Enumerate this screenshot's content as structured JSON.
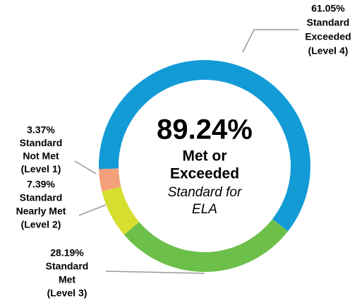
{
  "chart_data": {
    "type": "donut",
    "categories": [
      [
        "Standard",
        "Exceeded",
        "(Level 4)"
      ],
      [
        "Standard",
        "Met",
        "(Level 3)"
      ],
      [
        "Standard",
        "Nearly Met",
        "(Level 2)"
      ],
      [
        "Standard",
        "Not Met",
        "(Level 1)"
      ]
    ],
    "values": [
      61.05,
      28.19,
      7.39,
      3.37
    ],
    "value_labels": [
      "61.05%",
      "28.19%",
      "7.39%",
      "3.37%"
    ],
    "colors": [
      "#139bd6",
      "#6cc04a",
      "#d6df2e",
      "#f5a07c"
    ],
    "center_value": 89.24,
    "center_value_label": "89.24%",
    "center_text": [
      "Met or",
      "Exceeded"
    ],
    "center_subtext": [
      "Standard for",
      "ELA"
    ]
  }
}
